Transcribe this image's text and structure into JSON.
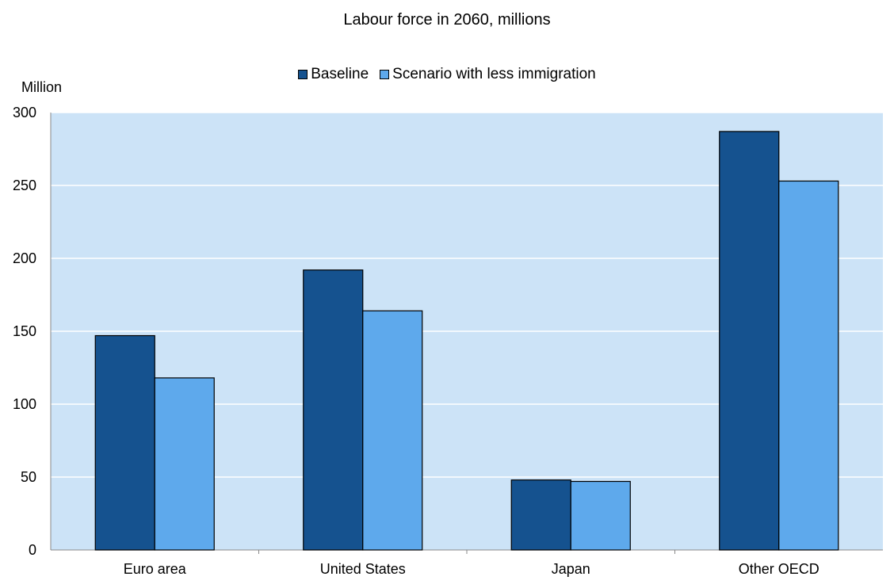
{
  "chart_data": {
    "type": "bar",
    "title": "Labour force in 2060, millions",
    "ylabel": "Million",
    "xlabel": "",
    "categories": [
      "Euro area",
      "United States",
      "Japan",
      "Other OECD"
    ],
    "series": [
      {
        "name": "Baseline",
        "color": "#15528f",
        "values": [
          147,
          192,
          48,
          287
        ]
      },
      {
        "name": "Scenario with less immigration",
        "color": "#5ea9ec",
        "values": [
          118,
          164,
          47,
          253
        ]
      }
    ],
    "ylim": [
      0,
      300
    ],
    "yticks": [
      0,
      50,
      100,
      150,
      200,
      250,
      300
    ],
    "grid": true,
    "legend_position": "top-center",
    "plot_background": "#cce3f7"
  }
}
